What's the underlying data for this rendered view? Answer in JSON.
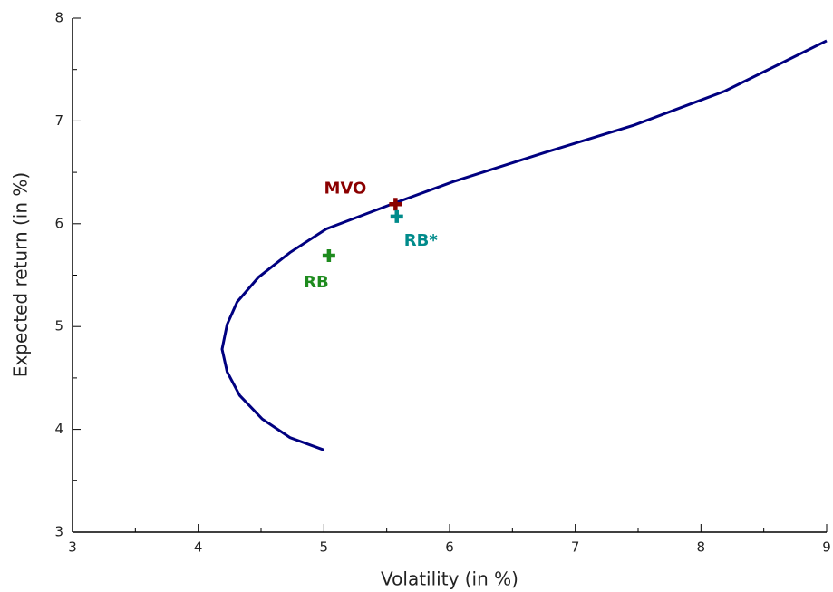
{
  "chart_data": {
    "type": "line",
    "xlabel": "Volatility (in %)",
    "ylabel": "Expected return (in %)",
    "xlim": [
      3,
      9
    ],
    "xticks": [
      3,
      4,
      5,
      6,
      7,
      8,
      9
    ],
    "xminor_ticks": [
      3.5,
      4.5,
      5.5,
      6.5,
      7.5,
      8.5
    ],
    "ylim": [
      3,
      8
    ],
    "yticks": [
      3,
      4,
      5,
      6,
      7,
      8
    ],
    "yminor_ticks": [
      3.5,
      4.5,
      5.5,
      6.5,
      7.5
    ],
    "series": [
      {
        "type": "line",
        "color": "#000080",
        "x": [
          5.0,
          4.73,
          4.51,
          4.33,
          4.23,
          4.19,
          4.23,
          4.31,
          4.48,
          4.73,
          5.02,
          5.56,
          6.03,
          6.75,
          7.47,
          8.19,
          9.0
        ],
        "values": [
          3.8,
          3.92,
          4.1,
          4.33,
          4.56,
          4.78,
          5.02,
          5.24,
          5.48,
          5.72,
          5.95,
          6.2,
          6.41,
          6.69,
          6.96,
          7.29,
          7.78
        ]
      },
      {
        "type": "scatter",
        "name": "MVO",
        "color": "#8b0000",
        "x": [
          5.57
        ],
        "values": [
          6.19
        ]
      },
      {
        "type": "scatter",
        "name": "RB*",
        "color": "#008b8b",
        "x": [
          5.58
        ],
        "values": [
          6.07
        ]
      },
      {
        "type": "scatter",
        "name": "RB",
        "color": "#1e8b1e",
        "x": [
          5.04
        ],
        "values": [
          5.69
        ]
      }
    ]
  }
}
